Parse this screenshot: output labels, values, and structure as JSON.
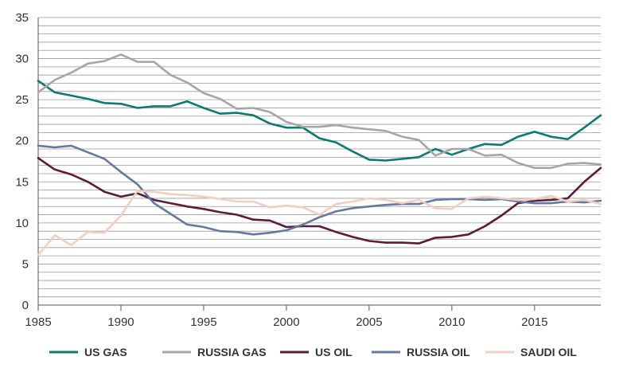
{
  "chart_data": {
    "type": "line",
    "title": "",
    "xlabel": "",
    "ylabel": "",
    "xlim": [
      1985,
      2019
    ],
    "ylim": [
      0,
      35
    ],
    "x_ticks": [
      1985,
      1990,
      1995,
      2000,
      2005,
      2010,
      2015
    ],
    "y_ticks": [
      0,
      5,
      10,
      15,
      20,
      25,
      30,
      35
    ],
    "grid": "horizontal",
    "legend_position": "bottom",
    "x": [
      1985,
      1986,
      1987,
      1988,
      1989,
      1990,
      1991,
      1992,
      1993,
      1994,
      1995,
      1996,
      1997,
      1998,
      1999,
      2000,
      2001,
      2002,
      2003,
      2004,
      2005,
      2006,
      2007,
      2008,
      2009,
      2010,
      2011,
      2012,
      2013,
      2014,
      2015,
      2016,
      2017,
      2018,
      2019
    ],
    "series": [
      {
        "name": "US GAS",
        "color": "#0d7a6f",
        "values": [
          27.3,
          25.9,
          25.5,
          25.1,
          24.6,
          24.5,
          24.0,
          24.2,
          24.2,
          24.8,
          24.0,
          23.3,
          23.4,
          23.1,
          22.1,
          21.6,
          21.6,
          20.3,
          19.8,
          18.7,
          17.7,
          17.6,
          17.8,
          18.0,
          19.0,
          18.3,
          19.0,
          19.6,
          19.5,
          20.5,
          21.1,
          20.5,
          20.2,
          21.6,
          23.1
        ]
      },
      {
        "name": "RUSSIA GAS",
        "color": "#a6a6a6",
        "values": [
          25.9,
          27.4,
          28.3,
          29.4,
          29.7,
          30.5,
          29.6,
          29.6,
          28.0,
          27.1,
          25.8,
          25.1,
          23.9,
          24.0,
          23.5,
          22.3,
          21.7,
          21.7,
          21.9,
          21.6,
          21.4,
          21.2,
          20.5,
          20.1,
          18.2,
          19.0,
          19.0,
          18.2,
          18.3,
          17.3,
          16.7,
          16.7,
          17.2,
          17.3,
          17.1
        ]
      },
      {
        "name": "US OIL",
        "color": "#5e1a3a",
        "values": [
          17.9,
          16.5,
          15.9,
          15.0,
          13.8,
          13.2,
          13.6,
          12.8,
          12.4,
          12.0,
          11.7,
          11.3,
          11.0,
          10.4,
          10.3,
          9.5,
          9.6,
          9.6,
          8.9,
          8.3,
          7.8,
          7.6,
          7.6,
          7.5,
          8.2,
          8.3,
          8.6,
          9.6,
          10.9,
          12.4,
          12.7,
          12.8,
          13.0,
          15.0,
          16.7
        ]
      },
      {
        "name": "RUSSIA OIL",
        "color": "#6677a0",
        "values": [
          19.4,
          19.2,
          19.4,
          18.6,
          17.8,
          16.2,
          14.7,
          12.4,
          11.1,
          9.8,
          9.5,
          9.0,
          8.9,
          8.6,
          8.8,
          9.1,
          9.8,
          10.7,
          11.4,
          11.8,
          12.0,
          12.2,
          12.3,
          12.3,
          12.8,
          12.9,
          12.9,
          12.8,
          12.9,
          12.6,
          12.4,
          12.4,
          12.6,
          12.5,
          12.7
        ]
      },
      {
        "name": "SAUDI OIL",
        "color": "#f2cfc0",
        "values": [
          6.1,
          8.5,
          7.3,
          8.9,
          8.8,
          10.9,
          13.9,
          13.8,
          13.5,
          13.4,
          13.2,
          12.9,
          12.6,
          12.6,
          11.9,
          12.1,
          11.9,
          11.0,
          12.3,
          12.6,
          13.0,
          12.8,
          12.4,
          12.8,
          11.8,
          11.7,
          13.0,
          13.2,
          13.0,
          12.8,
          12.9,
          13.3,
          12.6,
          12.8,
          12.3
        ]
      }
    ]
  }
}
